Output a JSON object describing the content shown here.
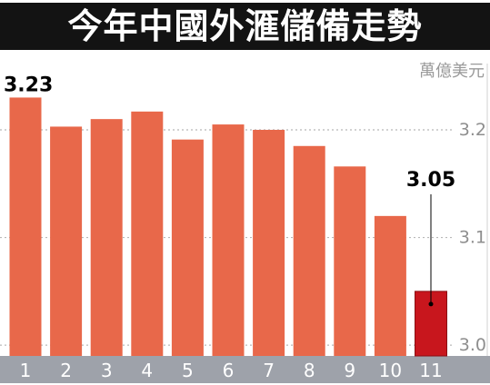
{
  "chart_data": {
    "type": "bar",
    "title": "今年中國外滙儲備走勢",
    "unit": "萬億美元",
    "categories": [
      "1",
      "2",
      "3",
      "4",
      "5",
      "6",
      "7",
      "8",
      "9",
      "10",
      "11"
    ],
    "values": [
      3.23,
      3.203,
      3.21,
      3.217,
      3.191,
      3.205,
      3.2,
      3.185,
      3.166,
      3.12,
      3.05
    ],
    "yticks": [
      "3.0",
      "3.1",
      "3.2"
    ],
    "ylim": [
      2.99,
      3.27
    ],
    "grid": true,
    "highlight": {
      "first_label": "3.23",
      "last_label": "3.05"
    },
    "colors": {
      "bar": "#e8684a",
      "bar_last": "#c8161d",
      "axis_band": "#9ea2aa",
      "grid": "#b8b8b8",
      "tick": "#8e8e8e"
    }
  }
}
